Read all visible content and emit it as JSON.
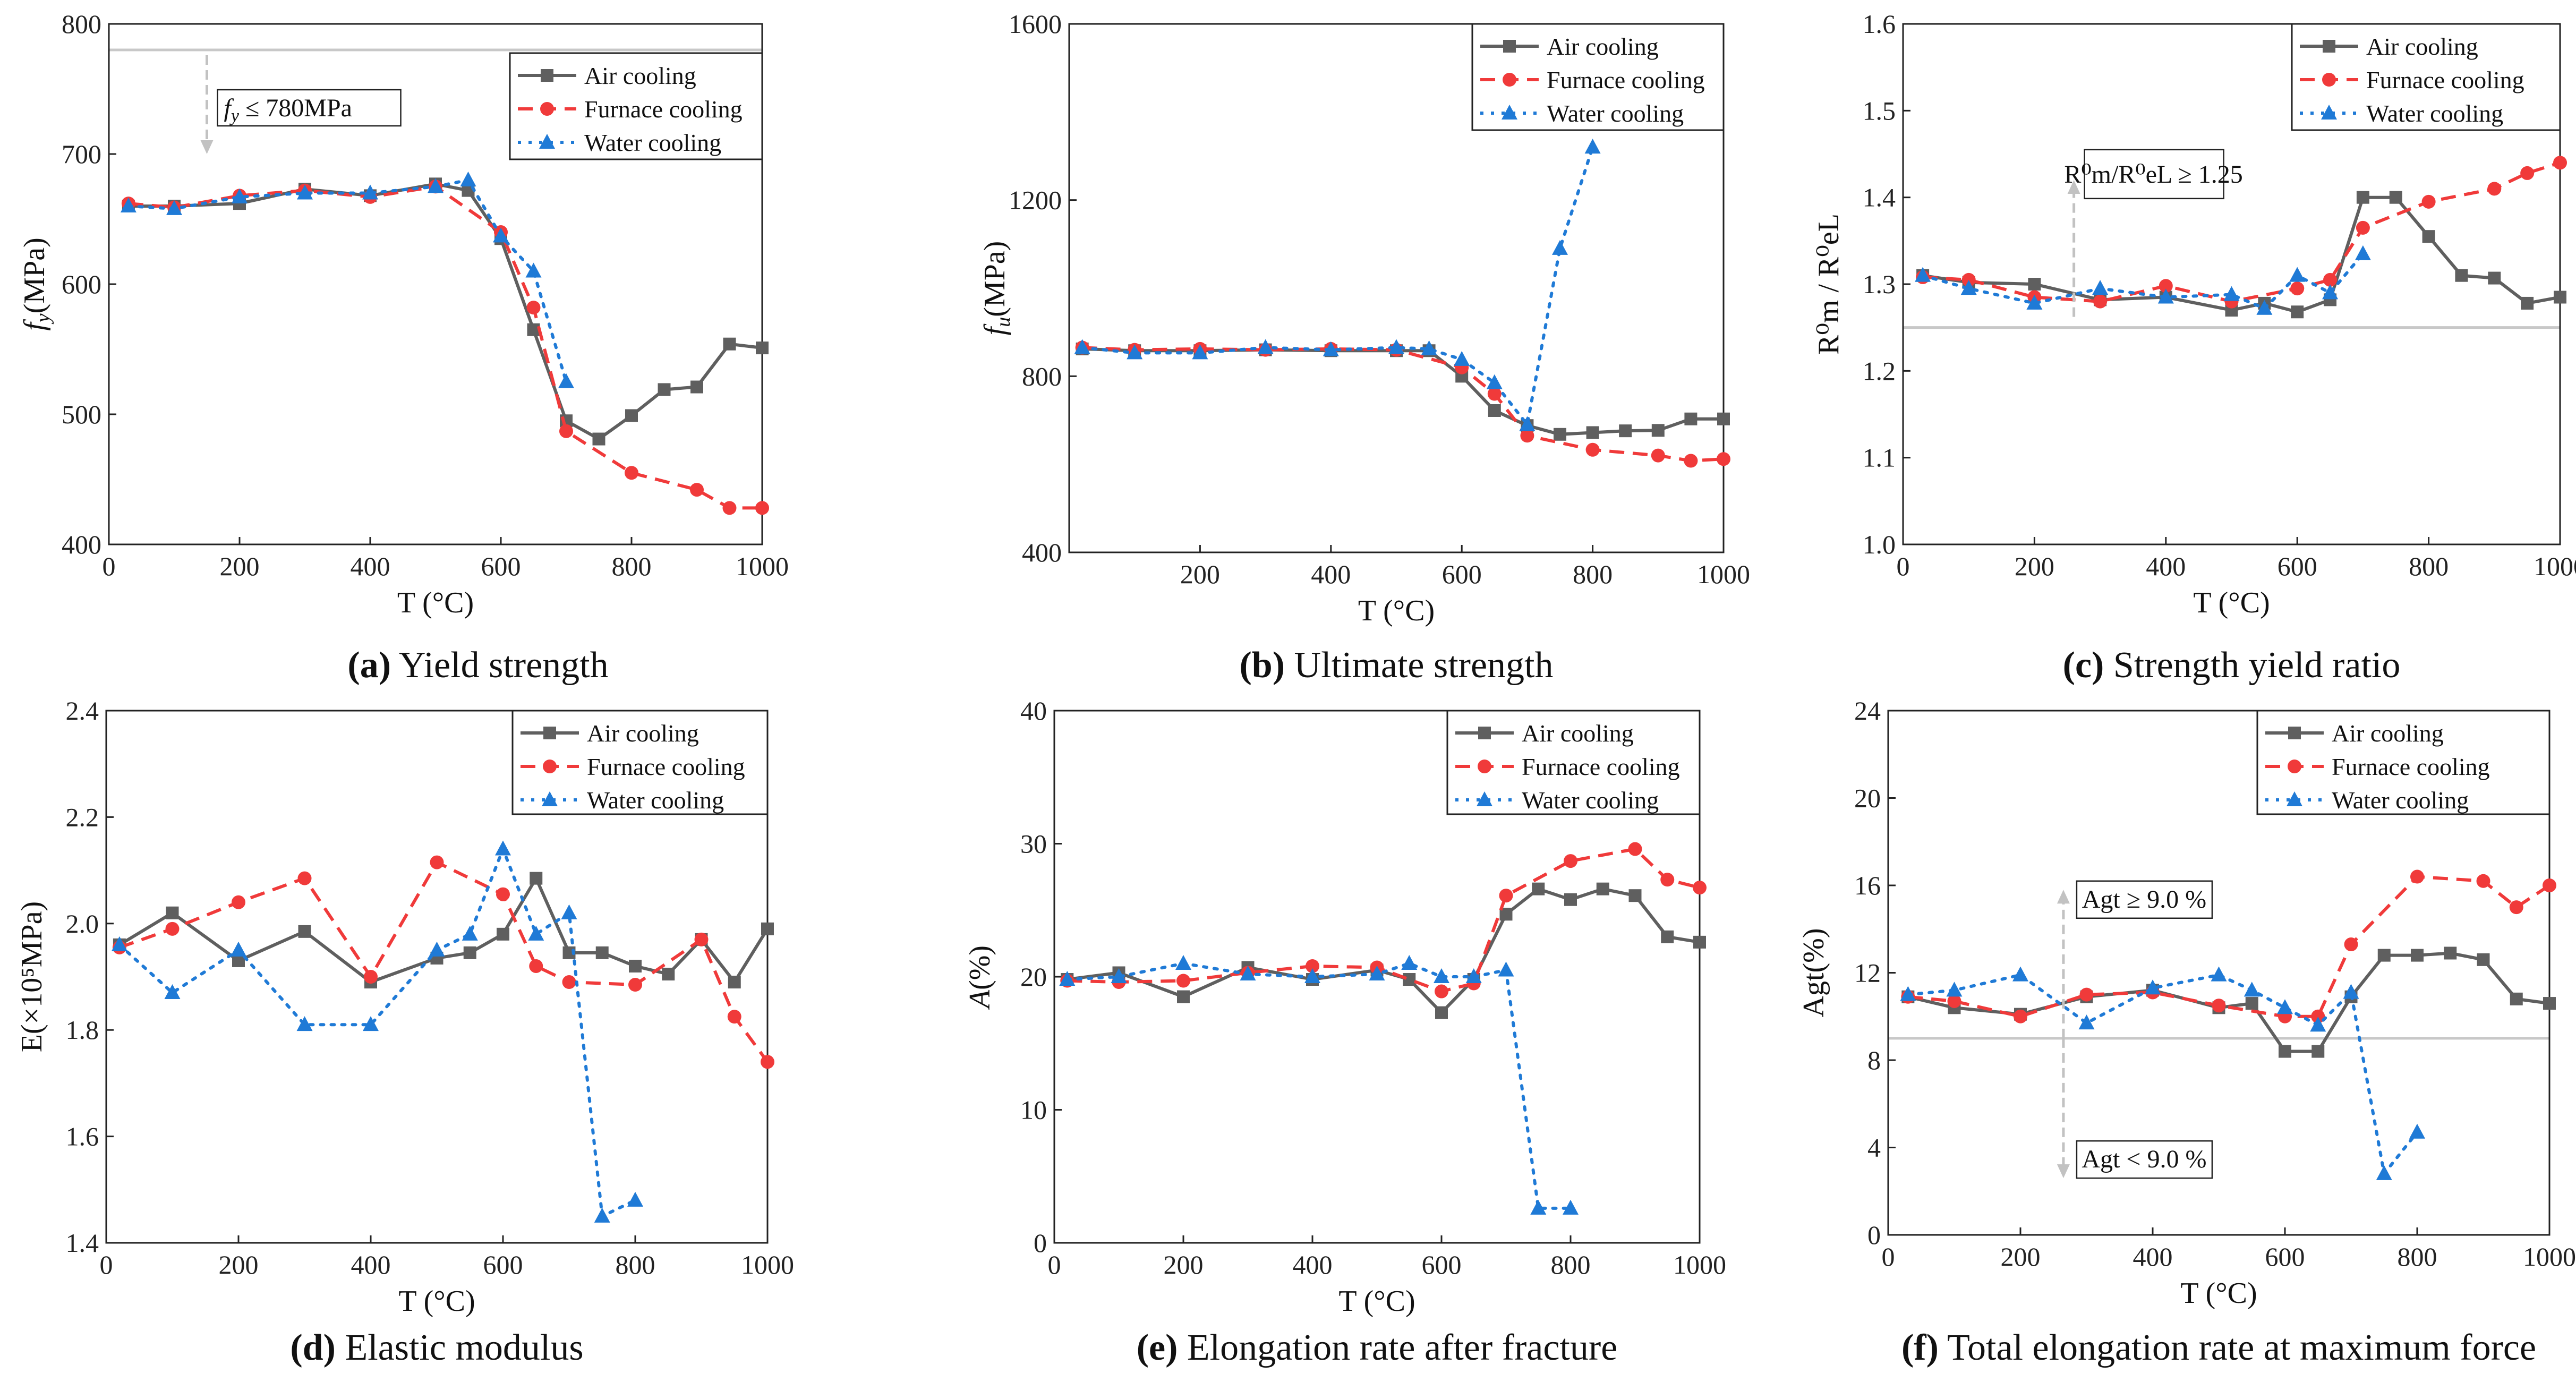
{
  "colors": {
    "air": "#5f5f5f",
    "furnace": "#f03a3a",
    "water": "#1f7ad6",
    "ref": "#c8c8c8",
    "arrow": "#c2c2c2"
  },
  "chart_data": [
    {
      "id": "a",
      "type": "line",
      "caption_letter": "(a)",
      "caption_text": "Yield strength",
      "ylabel_base": "f",
      "ylabel_sub": "y",
      "ylabel_rest": "(MPa)",
      "xlabel": "T (°C)",
      "xlim": [
        0,
        1000
      ],
      "ylim": [
        400,
        800
      ],
      "xticks": [
        0,
        200,
        400,
        600,
        800,
        1000
      ],
      "yticks": [
        400,
        500,
        600,
        700,
        800
      ],
      "legend": [
        "Air cooling",
        "Furnace cooling",
        "Water cooling"
      ],
      "series": [
        {
          "name": "Air cooling",
          "x": [
            30,
            100,
            200,
            300,
            400,
            500,
            550,
            600,
            650,
            700,
            750,
            800,
            850,
            900,
            950,
            1000
          ],
          "y": [
            660,
            660,
            662,
            673,
            668,
            677,
            672,
            635,
            565,
            495,
            481,
            499,
            519,
            521,
            554,
            551
          ]
        },
        {
          "name": "Furnace cooling",
          "x": [
            30,
            100,
            200,
            300,
            400,
            500,
            600,
            650,
            700,
            800,
            900,
            950,
            1000
          ],
          "y": [
            662,
            659,
            668,
            672,
            667,
            675,
            640,
            582,
            487,
            455,
            442,
            428,
            428
          ]
        },
        {
          "name": "Water cooling",
          "x": [
            30,
            100,
            200,
            300,
            400,
            500,
            550,
            600,
            650,
            700
          ],
          "y": [
            660,
            658,
            667,
            670,
            670,
            675,
            680,
            637,
            610,
            525
          ]
        }
      ],
      "reference": {
        "y": 780,
        "label": "f_y ≤ 780MPa",
        "label_base": "f",
        "label_sub": "y",
        "label_rest": " ≤ 780MPa",
        "arrow_x": 150,
        "arrow_to_y": 700
      }
    },
    {
      "id": "b",
      "type": "line",
      "caption_letter": "(b)",
      "caption_text": "Ultimate strength",
      "ylabel_base": "f",
      "ylabel_sub": "u",
      "ylabel_rest": "(MPa)",
      "xlabel": "T (°C)",
      "xlim": [
        0,
        1000
      ],
      "ylim": [
        400,
        1600
      ],
      "xticks": [
        200,
        400,
        600,
        800,
        1000
      ],
      "yticks": [
        400,
        800,
        1200,
        1600
      ],
      "legend": [
        "Air cooling",
        "Furnace cooling",
        "Water cooling"
      ],
      "series": [
        {
          "name": "Air cooling",
          "x": [
            20,
            100,
            200,
            300,
            400,
            500,
            550,
            600,
            650,
            700,
            750,
            800,
            850,
            900,
            950,
            1000
          ],
          "y": [
            862,
            858,
            858,
            860,
            858,
            858,
            858,
            800,
            722,
            688,
            668,
            672,
            676,
            677,
            703,
            703
          ]
        },
        {
          "name": "Furnace cooling",
          "x": [
            20,
            100,
            200,
            300,
            400,
            500,
            600,
            650,
            700,
            800,
            900,
            950,
            1000
          ],
          "y": [
            865,
            860,
            862,
            860,
            862,
            860,
            820,
            760,
            665,
            633,
            620,
            608,
            612
          ]
        },
        {
          "name": "Water cooling",
          "x": [
            20,
            100,
            200,
            300,
            400,
            500,
            550,
            600,
            650,
            700,
            750,
            800
          ],
          "y": [
            865,
            853,
            853,
            865,
            860,
            865,
            862,
            838,
            785,
            690,
            1090,
            1320
          ]
        }
      ]
    },
    {
      "id": "c",
      "type": "line",
      "caption_letter": "(c)",
      "caption_text": "Strength yield ratio",
      "ylabel_text": "R⁰m / R⁰eL",
      "xlabel": "T (°C)",
      "xlim": [
        0,
        1000
      ],
      "ylim": [
        1.0,
        1.6
      ],
      "xticks": [
        0,
        200,
        400,
        600,
        800,
        1000
      ],
      "yticks": [
        1.0,
        1.1,
        1.2,
        1.3,
        1.4,
        1.5,
        1.6
      ],
      "legend": [
        "Air cooling",
        "Furnace cooling",
        "Water cooling"
      ],
      "series": [
        {
          "name": "Air cooling",
          "x": [
            30,
            100,
            200,
            300,
            400,
            500,
            550,
            600,
            650,
            700,
            750,
            800,
            850,
            900,
            950,
            1000
          ],
          "y": [
            1.31,
            1.302,
            1.3,
            1.282,
            1.285,
            1.27,
            1.278,
            1.268,
            1.282,
            1.4,
            1.4,
            1.355,
            1.31,
            1.307,
            1.278,
            1.285
          ]
        },
        {
          "name": "Furnace cooling",
          "x": [
            30,
            100,
            200,
            300,
            400,
            500,
            600,
            650,
            700,
            800,
            900,
            950,
            1000
          ],
          "y": [
            1.308,
            1.305,
            1.285,
            1.28,
            1.298,
            1.28,
            1.295,
            1.305,
            1.365,
            1.395,
            1.41,
            1.428,
            1.44
          ]
        },
        {
          "name": "Water cooling",
          "x": [
            30,
            100,
            200,
            300,
            400,
            500,
            550,
            600,
            650,
            700
          ],
          "y": [
            1.31,
            1.295,
            1.278,
            1.295,
            1.285,
            1.288,
            1.272,
            1.31,
            1.29,
            1.335
          ]
        }
      ],
      "reference": {
        "y": 1.25,
        "label": "R⁰m/R⁰eL ≥ 1.25",
        "arrow_x": 260,
        "arrow_to_y": 1.42
      }
    },
    {
      "id": "d",
      "type": "line",
      "caption_letter": "(d)",
      "caption_text": "Elastic modulus",
      "ylabel_text": "E(×10⁵MPa)",
      "xlabel": "T (°C)",
      "xlim": [
        0,
        1000
      ],
      "ylim": [
        1.4,
        2.4
      ],
      "xticks": [
        0,
        200,
        400,
        600,
        800,
        1000
      ],
      "yticks": [
        1.4,
        1.6,
        1.8,
        2.0,
        2.2,
        2.4
      ],
      "legend": [
        "Air cooling",
        "Furnace cooling",
        "Water cooling"
      ],
      "series": [
        {
          "name": "Air cooling",
          "x": [
            20,
            100,
            200,
            300,
            400,
            500,
            550,
            600,
            650,
            700,
            750,
            800,
            850,
            900,
            950,
            1000
          ],
          "y": [
            1.96,
            2.02,
            1.93,
            1.985,
            1.89,
            1.935,
            1.945,
            1.98,
            2.085,
            1.945,
            1.945,
            1.92,
            1.905,
            1.97,
            1.89,
            1.99
          ]
        },
        {
          "name": "Furnace cooling",
          "x": [
            20,
            100,
            200,
            300,
            400,
            500,
            600,
            650,
            700,
            800,
            900,
            950,
            1000
          ],
          "y": [
            1.955,
            1.99,
            2.04,
            2.085,
            1.9,
            2.115,
            2.055,
            1.92,
            1.89,
            1.885,
            1.97,
            1.825,
            1.74
          ]
        },
        {
          "name": "Water cooling",
          "x": [
            20,
            100,
            200,
            300,
            400,
            500,
            550,
            600,
            650,
            700,
            750,
            800
          ],
          "y": [
            1.96,
            1.87,
            1.95,
            1.81,
            1.81,
            1.95,
            1.98,
            2.14,
            1.98,
            2.02,
            1.45,
            1.48
          ]
        }
      ]
    },
    {
      "id": "e",
      "type": "line",
      "caption_letter": "(e)",
      "caption_text": "Elongation rate after fracture",
      "ylabel_base": "A",
      "ylabel_rest": "(%)",
      "xlabel": "T (°C)",
      "xlim": [
        0,
        1000
      ],
      "ylim": [
        0,
        40
      ],
      "xticks": [
        0,
        200,
        400,
        600,
        800,
        1000
      ],
      "yticks": [
        0,
        10,
        20,
        30,
        40
      ],
      "legend": [
        "Air cooling",
        "Furnace cooling",
        "Water cooling"
      ],
      "series": [
        {
          "name": "Air cooling",
          "x": [
            20,
            100,
            200,
            300,
            400,
            500,
            550,
            600,
            650,
            700,
            750,
            800,
            850,
            900,
            950,
            1000
          ],
          "y": [
            19.8,
            20.3,
            18.5,
            20.7,
            19.8,
            20.5,
            19.8,
            17.3,
            19.8,
            24.7,
            26.6,
            25.8,
            26.6,
            26.1,
            23.0,
            22.6
          ]
        },
        {
          "name": "Furnace cooling",
          "x": [
            20,
            100,
            200,
            300,
            400,
            500,
            600,
            650,
            700,
            800,
            900,
            950,
            1000
          ],
          "y": [
            19.7,
            19.6,
            19.7,
            20.3,
            20.8,
            20.7,
            18.9,
            19.5,
            26.1,
            28.7,
            29.6,
            27.3,
            26.7
          ]
        },
        {
          "name": "Water cooling",
          "x": [
            20,
            100,
            200,
            300,
            400,
            500,
            550,
            600,
            650,
            700,
            750,
            800
          ],
          "y": [
            19.8,
            20.0,
            21.0,
            20.2,
            20.0,
            20.2,
            21.0,
            20.0,
            20.0,
            20.5,
            2.6,
            2.6
          ]
        }
      ]
    },
    {
      "id": "f",
      "type": "line",
      "caption_letter": "(f)",
      "caption_text": "Total elongation rate at maximum force",
      "ylabel_text": "Agt(%)",
      "xlabel": "T (°C)",
      "xlim": [
        0,
        1000
      ],
      "ylim": [
        0,
        24
      ],
      "xticks": [
        0,
        200,
        400,
        600,
        800,
        1000
      ],
      "yticks": [
        0,
        4,
        8,
        12,
        16,
        20,
        24
      ],
      "legend": [
        "Air cooling",
        "Furnace cooling",
        "Water cooling"
      ],
      "series": [
        {
          "name": "Air cooling",
          "x": [
            30,
            100,
            200,
            300,
            400,
            500,
            550,
            600,
            650,
            700,
            750,
            800,
            850,
            900,
            950,
            1000
          ],
          "y": [
            10.9,
            10.4,
            10.1,
            10.9,
            11.2,
            10.4,
            10.6,
            8.4,
            8.4,
            10.9,
            12.8,
            12.8,
            12.9,
            12.6,
            10.8,
            10.6
          ]
        },
        {
          "name": "Furnace cooling",
          "x": [
            30,
            100,
            200,
            300,
            400,
            500,
            600,
            650,
            700,
            800,
            900,
            950,
            1000
          ],
          "y": [
            10.9,
            10.7,
            10.0,
            11.0,
            11.1,
            10.5,
            10.0,
            10.0,
            13.3,
            16.4,
            16.2,
            15.0,
            16.0
          ]
        },
        {
          "name": "Water cooling",
          "x": [
            30,
            100,
            200,
            300,
            400,
            500,
            550,
            600,
            650,
            700,
            750,
            800
          ],
          "y": [
            11.0,
            11.2,
            11.9,
            9.7,
            11.3,
            11.9,
            11.2,
            10.4,
            9.6,
            11.1,
            2.8,
            4.7
          ]
        }
      ],
      "reference": {
        "y": 9.0,
        "label_upper": "Agt ≥ 9.0 %",
        "label_lower": "Agt < 9.0 %",
        "arrow_x": 265,
        "arrow_up_y": 15.8,
        "arrow_down_y": 2.6
      }
    }
  ]
}
